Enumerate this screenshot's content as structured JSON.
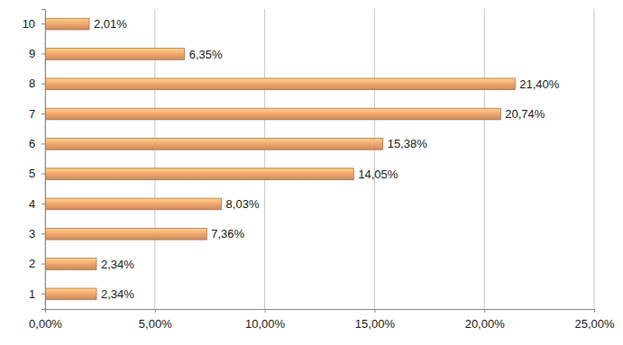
{
  "chart_data": {
    "type": "bar",
    "orientation": "horizontal",
    "categories": [
      "1",
      "2",
      "3",
      "4",
      "5",
      "6",
      "7",
      "8",
      "9",
      "10"
    ],
    "values": [
      2.34,
      2.34,
      7.36,
      8.03,
      14.05,
      15.38,
      20.74,
      21.4,
      6.35,
      2.01
    ],
    "value_labels": [
      "2,34%",
      "2,34%",
      "7,36%",
      "8,03%",
      "14,05%",
      "15,38%",
      "20,74%",
      "21,40%",
      "6,35%",
      "2,01%"
    ],
    "color": "#f2a66e",
    "xlim": [
      0,
      25
    ],
    "xticks": [
      {
        "value": 0,
        "label": "0,00%"
      },
      {
        "value": 5,
        "label": "5,00%"
      },
      {
        "value": 10,
        "label": "10,00%"
      },
      {
        "value": 15,
        "label": "15,00%"
      },
      {
        "value": 20,
        "label": "20,00%"
      },
      {
        "value": 25,
        "label": "25,00%"
      }
    ],
    "grid": true,
    "data_labels": true
  }
}
